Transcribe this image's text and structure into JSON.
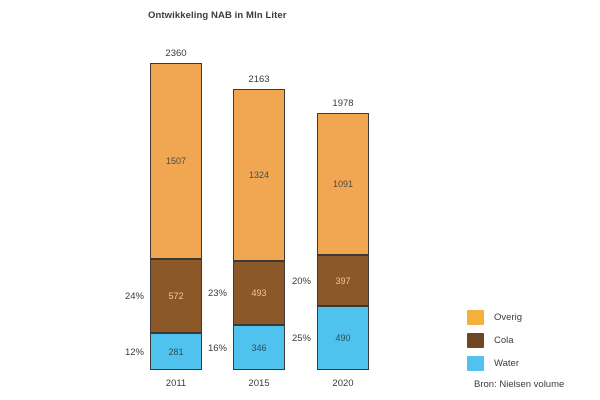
{
  "title": "Ontwikkeling NAB in Mln Liter",
  "source": "Bron: Nielsen volume",
  "colors": {
    "background": "#ffffff",
    "text": "#3b3b3b",
    "bar_outline": "#3b3836",
    "overig": "#F1A752",
    "cola": "#8D5827",
    "water": "#4FC3EE"
  },
  "legend": {
    "position": "bottom-right",
    "items": [
      {
        "label": "Overig",
        "color": "#F3B03C"
      },
      {
        "label": "Cola",
        "color": "#6F4522"
      },
      {
        "label": "Water",
        "color": "#4FC3EE"
      }
    ]
  },
  "chart_data": {
    "type": "bar",
    "stacked": true,
    "title": "Ontwikkeling NAB in Mln Liter",
    "unit": "Mln Liter",
    "grid": false,
    "legend_position": "bottom-right",
    "categories": [
      "2011",
      "2015",
      "2020"
    ],
    "totals": [
      2360,
      2163,
      1978
    ],
    "series": [
      {
        "name": "Water",
        "color": "#4FC3EE",
        "label_color": "#2b4d5c",
        "values": [
          281,
          346,
          490
        ],
        "pct_labels": [
          "12%",
          "16%",
          "25%"
        ]
      },
      {
        "name": "Cola",
        "color": "#8D5827",
        "label_color": "#f0c693",
        "values": [
          572,
          493,
          397
        ],
        "pct_labels": [
          "24%",
          "23%",
          "20%"
        ]
      },
      {
        "name": "Overig",
        "color": "#F1A752",
        "label_color": "#4a4a48",
        "values": [
          1507,
          1324,
          1091
        ],
        "pct_labels": [
          null,
          null,
          null
        ]
      }
    ]
  }
}
